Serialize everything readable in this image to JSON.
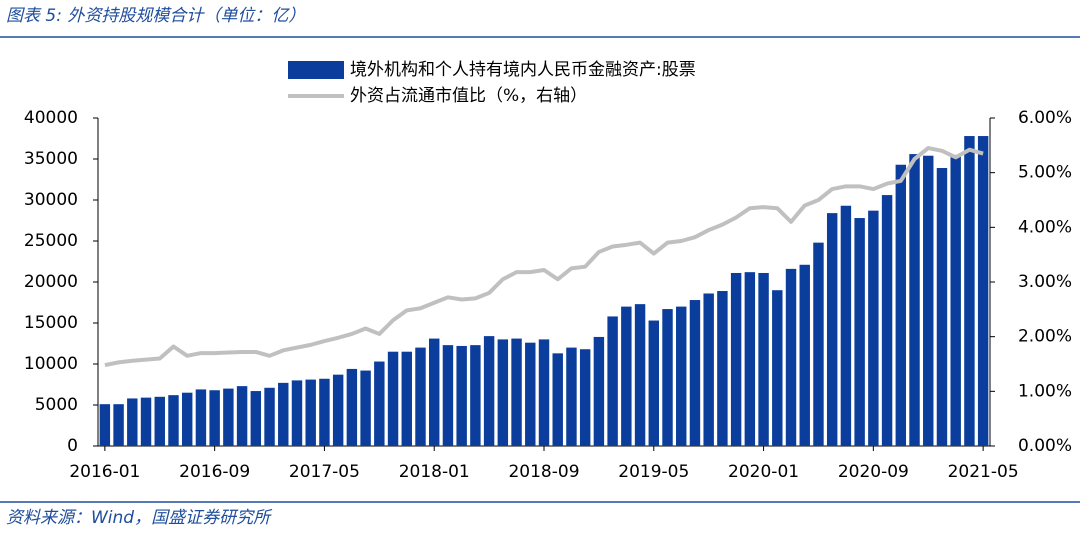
{
  "header": {
    "title": "图表 5:  外资持股规模合计（单位：亿）"
  },
  "footer": {
    "source": "资料来源：Wind，国盛证券研究所"
  },
  "chart_data": {
    "type": "bar-line",
    "categories": [
      "2016-01",
      null,
      null,
      null,
      null,
      null,
      null,
      null,
      "2016-09",
      null,
      null,
      null,
      null,
      null,
      null,
      null,
      "2017-05",
      null,
      null,
      null,
      null,
      null,
      null,
      null,
      "2018-01",
      null,
      null,
      null,
      null,
      null,
      null,
      null,
      "2018-09",
      null,
      null,
      null,
      null,
      null,
      null,
      null,
      "2019-05",
      null,
      null,
      null,
      null,
      null,
      null,
      null,
      "2020-01",
      null,
      null,
      null,
      null,
      null,
      null,
      null,
      "2020-09",
      null,
      null,
      null,
      null,
      null,
      null,
      null,
      "2021-05"
    ],
    "series": [
      {
        "name": "境外机构和个人持有境内人民币金融资产:股票",
        "color": "#0b3d9c",
        "kind": "bar",
        "values": [
          5100,
          5100,
          5800,
          5900,
          6000,
          6200,
          6500,
          6900,
          6800,
          7000,
          7300,
          6700,
          7100,
          7700,
          8000,
          8100,
          8200,
          8700,
          9400,
          9200,
          10300,
          11500,
          11500,
          12000,
          13100,
          12300,
          12200,
          12300,
          13400,
          13000,
          13100,
          12600,
          13000,
          11300,
          12000,
          11800,
          13300,
          15800,
          17000,
          17300,
          15300,
          16700,
          17000,
          17800,
          18600,
          18900,
          21100,
          21200,
          21100,
          19000,
          21600,
          22100,
          24800,
          28400,
          29300,
          27800,
          28700,
          30600,
          34300,
          35600,
          35400,
          33900,
          35500,
          37800,
          37800
        ]
      },
      {
        "name": "外资占流通市值比（%，右轴）",
        "color": "#c0c0c0",
        "kind": "line",
        "axis": "y2",
        "values": [
          1.48,
          1.53,
          1.56,
          1.58,
          1.6,
          1.82,
          1.65,
          1.7,
          1.7,
          1.71,
          1.72,
          1.72,
          1.65,
          1.75,
          1.8,
          1.85,
          1.92,
          1.98,
          2.05,
          2.15,
          2.05,
          2.3,
          2.48,
          2.52,
          2.62,
          2.72,
          2.68,
          2.7,
          2.8,
          3.05,
          3.18,
          3.18,
          3.22,
          3.05,
          3.25,
          3.28,
          3.55,
          3.65,
          3.68,
          3.72,
          3.52,
          3.72,
          3.75,
          3.82,
          3.95,
          4.05,
          4.18,
          4.35,
          4.37,
          4.35,
          4.1,
          4.4,
          4.5,
          4.7,
          4.75,
          4.75,
          4.7,
          4.8,
          4.85,
          5.25,
          5.45,
          5.4,
          5.28,
          5.42,
          5.35
        ]
      }
    ],
    "ylim": [
      0,
      40000
    ],
    "yticks": [
      0,
      5000,
      10000,
      15000,
      20000,
      25000,
      30000,
      35000,
      40000
    ],
    "y2lim": [
      0,
      6
    ],
    "y2ticks": [
      {
        "value": 0,
        "label": "0.00%"
      },
      {
        "value": 1,
        "label": "1.00%"
      },
      {
        "value": 2,
        "label": "2.00%"
      },
      {
        "value": 3,
        "label": "3.00%"
      },
      {
        "value": 4,
        "label": "4.00%"
      },
      {
        "value": 5,
        "label": "5.00%"
      },
      {
        "value": 6,
        "label": "6.00%"
      }
    ]
  }
}
